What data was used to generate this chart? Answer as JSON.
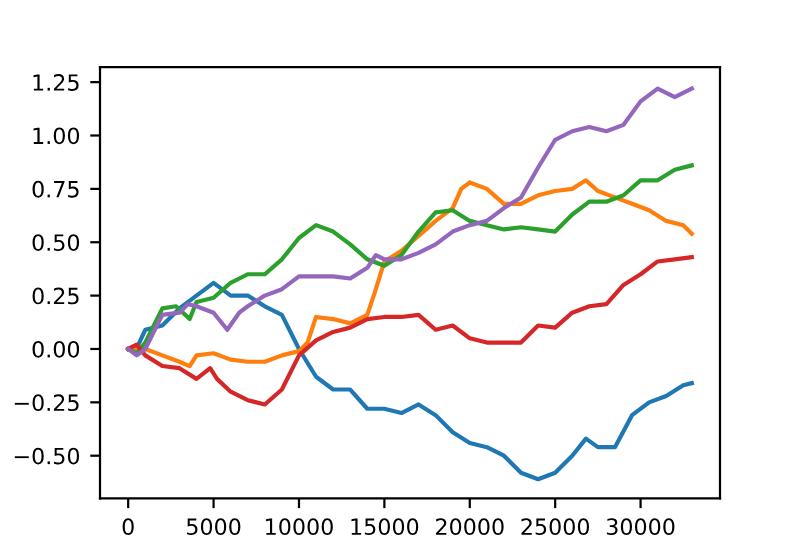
{
  "chart_data": {
    "type": "line",
    "xlim": [
      -1650,
      34650
    ],
    "ylim": [
      -0.7,
      1.32
    ],
    "xticks": [
      0,
      5000,
      10000,
      15000,
      20000,
      25000,
      30000
    ],
    "yticks": [
      {
        "value": -0.5,
        "label": "−0.50"
      },
      {
        "value": -0.25,
        "label": "−0.25"
      },
      {
        "value": 0,
        "label": "0.00"
      },
      {
        "value": 0.25,
        "label": "0.25"
      },
      {
        "value": 0.5,
        "label": "0.50"
      },
      {
        "value": 0.75,
        "label": "0.75"
      },
      {
        "value": 1.0,
        "label": "1.00"
      },
      {
        "value": 1.25,
        "label": "1.25"
      }
    ],
    "grid": false,
    "marker": "none",
    "line_style": "solid",
    "series": [
      {
        "color": "#1f77b4",
        "x": [
          0,
          600,
          1000,
          2000,
          3000,
          4000,
          5000,
          6000,
          7000,
          8000,
          9000,
          10000,
          11000,
          12000,
          13000,
          14000,
          15000,
          16000,
          17000,
          18000,
          19000,
          20000,
          21000,
          22000,
          23000,
          24000,
          25000,
          26000,
          26800,
          27500,
          28500,
          29500,
          30500,
          31500,
          32500,
          33000
        ],
        "values": [
          0,
          0.02,
          0.09,
          0.11,
          0.19,
          0.25,
          0.31,
          0.25,
          0.25,
          0.2,
          0.16,
          0,
          -0.13,
          -0.19,
          -0.19,
          -0.28,
          -0.28,
          -0.3,
          -0.26,
          -0.31,
          -0.39,
          -0.44,
          -0.46,
          -0.5,
          -0.58,
          -0.61,
          -0.58,
          -0.5,
          -0.42,
          -0.46,
          -0.46,
          -0.31,
          -0.25,
          -0.22,
          -0.17,
          -0.16
        ]
      },
      {
        "color": "#ff7f0e",
        "x": [
          0,
          1000,
          2000,
          3000,
          3600,
          4000,
          5000,
          6000,
          7000,
          8000,
          9000,
          10000,
          10500,
          11000,
          12000,
          13000,
          14000,
          14500,
          15000,
          16000,
          17000,
          18000,
          19000,
          19500,
          20000,
          21000,
          22000,
          23000,
          24000,
          25000,
          26000,
          26800,
          27500,
          28500,
          29500,
          30500,
          31500,
          32500,
          33000
        ],
        "values": [
          0,
          0,
          -0.03,
          -0.06,
          -0.08,
          -0.03,
          -0.02,
          -0.05,
          -0.06,
          -0.06,
          -0.03,
          -0.01,
          0.03,
          0.15,
          0.14,
          0.12,
          0.16,
          0.28,
          0.41,
          0.46,
          0.53,
          0.6,
          0.66,
          0.75,
          0.78,
          0.75,
          0.68,
          0.68,
          0.72,
          0.74,
          0.75,
          0.79,
          0.74,
          0.71,
          0.68,
          0.65,
          0.6,
          0.58,
          0.54
        ]
      },
      {
        "color": "#2ca02c",
        "x": [
          0,
          500,
          1000,
          2000,
          2800,
          3600,
          4000,
          5000,
          6000,
          7000,
          8000,
          9000,
          10000,
          11000,
          12000,
          13000,
          14000,
          15000,
          16000,
          17000,
          18000,
          19000,
          20000,
          21000,
          22000,
          23000,
          24000,
          25000,
          26000,
          27000,
          28000,
          29000,
          30000,
          31000,
          32000,
          33000
        ],
        "values": [
          0,
          -0.02,
          0.03,
          0.19,
          0.2,
          0.14,
          0.22,
          0.24,
          0.31,
          0.35,
          0.35,
          0.42,
          0.52,
          0.58,
          0.55,
          0.49,
          0.42,
          0.39,
          0.44,
          0.55,
          0.64,
          0.65,
          0.6,
          0.58,
          0.56,
          0.57,
          0.56,
          0.55,
          0.63,
          0.69,
          0.69,
          0.72,
          0.79,
          0.79,
          0.84,
          0.86
        ]
      },
      {
        "color": "#d62728",
        "x": [
          0,
          500,
          1000,
          2000,
          3000,
          4000,
          4800,
          5200,
          6000,
          7000,
          8000,
          9000,
          10000,
          11000,
          12000,
          13000,
          14000,
          15000,
          16000,
          17000,
          18000,
          19000,
          20000,
          21000,
          22000,
          23000,
          24000,
          25000,
          26000,
          27000,
          28000,
          29000,
          30000,
          31000,
          32000,
          33000
        ],
        "values": [
          0,
          0.02,
          -0.03,
          -0.08,
          -0.09,
          -0.14,
          -0.09,
          -0.14,
          -0.2,
          -0.24,
          -0.26,
          -0.19,
          -0.03,
          0.04,
          0.08,
          0.1,
          0.14,
          0.15,
          0.15,
          0.16,
          0.09,
          0.11,
          0.05,
          0.03,
          0.03,
          0.03,
          0.11,
          0.1,
          0.17,
          0.2,
          0.21,
          0.3,
          0.35,
          0.41,
          0.42,
          0.43
        ]
      },
      {
        "color": "#9467bd",
        "x": [
          0,
          500,
          1000,
          1500,
          2000,
          3000,
          3500,
          4000,
          5000,
          5800,
          6500,
          7000,
          8000,
          9000,
          10000,
          11000,
          12000,
          13000,
          14000,
          14500,
          15000,
          16000,
          17000,
          18000,
          19000,
          20000,
          21000,
          22000,
          23000,
          24000,
          25000,
          26000,
          27000,
          28000,
          29000,
          30000,
          31000,
          32000,
          33000
        ],
        "values": [
          0,
          -0.03,
          0,
          0.08,
          0.16,
          0.17,
          0.21,
          0.2,
          0.17,
          0.09,
          0.17,
          0.2,
          0.25,
          0.28,
          0.34,
          0.34,
          0.34,
          0.33,
          0.38,
          0.44,
          0.42,
          0.42,
          0.45,
          0.49,
          0.55,
          0.58,
          0.6,
          0.66,
          0.71,
          0.85,
          0.98,
          1.02,
          1.04,
          1.02,
          1.05,
          1.16,
          1.22,
          1.18,
          1.22
        ]
      }
    ]
  }
}
